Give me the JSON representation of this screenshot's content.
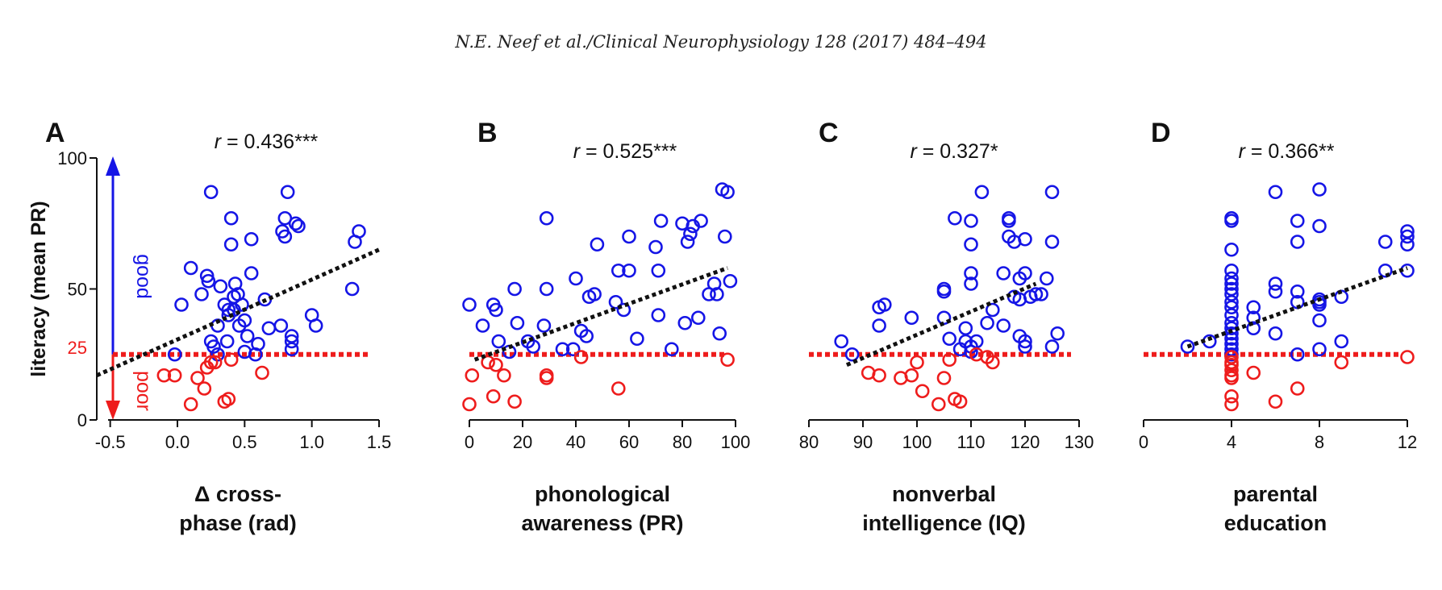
{
  "header": {
    "authors": "N.E. Neef et al.",
    "journal": "Clinical Neurophysiology 128 (2017) 484–494"
  },
  "colors": {
    "good": "#1515e6",
    "poor": "#ee1c1c",
    "fit": "#111111",
    "axis": "#111111"
  },
  "shared": {
    "ylabel": "literacy (mean PR)",
    "yticks": [
      0,
      50,
      100
    ],
    "ylim": [
      0,
      100
    ],
    "ref_value": 25,
    "ref_label": "25",
    "good_label": "good",
    "poor_label": "poor"
  },
  "chart_data": [
    {
      "type": "scatter",
      "panel": "A",
      "r_label": "r",
      "r_text": " = 0.436***",
      "xlabel_lines": [
        "Δ cross-",
        "phase (rad)"
      ],
      "xlim": [
        -0.6,
        1.5
      ],
      "xticks": [
        -0.5,
        0.0,
        0.5,
        1.0,
        1.5
      ],
      "xtick_labels": [
        "-0.5",
        "0.0",
        "0.5",
        "1.0",
        "1.5"
      ],
      "fit": [
        [
          -0.6,
          17
        ],
        [
          1.5,
          65
        ]
      ],
      "good_points": [
        [
          -0.02,
          25
        ],
        [
          0.03,
          44
        ],
        [
          0.1,
          58
        ],
        [
          0.18,
          48
        ],
        [
          0.22,
          55
        ],
        [
          0.23,
          53
        ],
        [
          0.25,
          87
        ],
        [
          0.25,
          30
        ],
        [
          0.27,
          28
        ],
        [
          0.3,
          36
        ],
        [
          0.3,
          25
        ],
        [
          0.32,
          51
        ],
        [
          0.35,
          44
        ],
        [
          0.37,
          30
        ],
        [
          0.38,
          40
        ],
        [
          0.38,
          42
        ],
        [
          0.4,
          77
        ],
        [
          0.4,
          67
        ],
        [
          0.42,
          42
        ],
        [
          0.42,
          47
        ],
        [
          0.43,
          52
        ],
        [
          0.45,
          48
        ],
        [
          0.46,
          36
        ],
        [
          0.48,
          44
        ],
        [
          0.5,
          26
        ],
        [
          0.5,
          38
        ],
        [
          0.52,
          32
        ],
        [
          0.55,
          56
        ],
        [
          0.55,
          69
        ],
        [
          0.58,
          25
        ],
        [
          0.6,
          29
        ],
        [
          0.65,
          46
        ],
        [
          0.68,
          35
        ],
        [
          0.77,
          36
        ],
        [
          0.78,
          72
        ],
        [
          0.8,
          70
        ],
        [
          0.8,
          77
        ],
        [
          0.82,
          87
        ],
        [
          0.85,
          27
        ],
        [
          0.85,
          30
        ],
        [
          0.85,
          32
        ],
        [
          0.88,
          75
        ],
        [
          0.9,
          74
        ],
        [
          1.0,
          40
        ],
        [
          1.03,
          36
        ],
        [
          1.3,
          50
        ],
        [
          1.32,
          68
        ],
        [
          1.35,
          72
        ]
      ],
      "poor_points": [
        [
          -0.1,
          17
        ],
        [
          -0.02,
          17
        ],
        [
          0.1,
          6
        ],
        [
          0.15,
          16
        ],
        [
          0.2,
          12
        ],
        [
          0.22,
          20
        ],
        [
          0.25,
          22
        ],
        [
          0.28,
          22
        ],
        [
          0.35,
          7
        ],
        [
          0.38,
          8
        ],
        [
          0.4,
          23
        ],
        [
          0.63,
          18
        ]
      ]
    },
    {
      "type": "scatter",
      "panel": "B",
      "r_label": "r",
      "r_text": " = 0.525***",
      "xlabel_lines": [
        "phonological",
        "awareness (PR)"
      ],
      "xlim": [
        0,
        100
      ],
      "xticks": [
        0,
        20,
        40,
        60,
        80,
        100
      ],
      "xtick_labels": [
        "0",
        "20",
        "40",
        "60",
        "80",
        "100"
      ],
      "fit": [
        [
          2,
          23
        ],
        [
          97,
          58
        ]
      ],
      "good_points": [
        [
          0,
          44
        ],
        [
          5,
          36
        ],
        [
          9,
          44
        ],
        [
          10,
          42
        ],
        [
          11,
          30
        ],
        [
          15,
          26
        ],
        [
          17,
          50
        ],
        [
          18,
          37
        ],
        [
          22,
          30
        ],
        [
          24,
          28
        ],
        [
          28,
          36
        ],
        [
          29,
          50
        ],
        [
          29,
          77
        ],
        [
          35,
          27
        ],
        [
          39,
          27
        ],
        [
          40,
          54
        ],
        [
          42,
          34
        ],
        [
          44,
          32
        ],
        [
          45,
          47
        ],
        [
          47,
          48
        ],
        [
          48,
          67
        ],
        [
          55,
          45
        ],
        [
          56,
          57
        ],
        [
          58,
          42
        ],
        [
          60,
          70
        ],
        [
          60,
          57
        ],
        [
          63,
          31
        ],
        [
          70,
          66
        ],
        [
          71,
          57
        ],
        [
          71,
          40
        ],
        [
          72,
          76
        ],
        [
          76,
          27
        ],
        [
          80,
          75
        ],
        [
          81,
          37
        ],
        [
          82,
          68
        ],
        [
          83,
          71
        ],
        [
          84,
          74
        ],
        [
          86,
          39
        ],
        [
          87,
          76
        ],
        [
          90,
          48
        ],
        [
          92,
          52
        ],
        [
          93,
          48
        ],
        [
          94,
          33
        ],
        [
          95,
          88
        ],
        [
          96,
          70
        ],
        [
          97,
          87
        ],
        [
          98,
          53
        ]
      ],
      "poor_points": [
        [
          0,
          6
        ],
        [
          1,
          17
        ],
        [
          7,
          22
        ],
        [
          9,
          9
        ],
        [
          10,
          21
        ],
        [
          13,
          17
        ],
        [
          17,
          7
        ],
        [
          29,
          16
        ],
        [
          29,
          17
        ],
        [
          42,
          24
        ],
        [
          56,
          12
        ],
        [
          97,
          23
        ]
      ]
    },
    {
      "type": "scatter",
      "panel": "C",
      "r_label": "r",
      "r_text": " = 0.327*",
      "xlabel_lines": [
        "nonverbal",
        "intelligence (IQ)"
      ],
      "xlim": [
        80,
        130
      ],
      "xticks": [
        80,
        90,
        100,
        110,
        120,
        130
      ],
      "xtick_labels": [
        "80",
        "90",
        "100",
        "110",
        "120",
        "130"
      ],
      "fit": [
        [
          87,
          21
        ],
        [
          122,
          52
        ]
      ],
      "good_points": [
        [
          86,
          30
        ],
        [
          88,
          25
        ],
        [
          93,
          43
        ],
        [
          93,
          36
        ],
        [
          94,
          44
        ],
        [
          99,
          39
        ],
        [
          105,
          50
        ],
        [
          105,
          49
        ],
        [
          105,
          39
        ],
        [
          106,
          31
        ],
        [
          107,
          77
        ],
        [
          108,
          27
        ],
        [
          109,
          30
        ],
        [
          109,
          35
        ],
        [
          110,
          26
        ],
        [
          110,
          28
        ],
        [
          110,
          52
        ],
        [
          110,
          56
        ],
        [
          110,
          67
        ],
        [
          110,
          76
        ],
        [
          111,
          30
        ],
        [
          112,
          87
        ],
        [
          113,
          37
        ],
        [
          114,
          42
        ],
        [
          116,
          36
        ],
        [
          116,
          56
        ],
        [
          117,
          70
        ],
        [
          117,
          76
        ],
        [
          117,
          77
        ],
        [
          118,
          68
        ],
        [
          118,
          47
        ],
        [
          119,
          46
        ],
        [
          119,
          54
        ],
        [
          119,
          32
        ],
        [
          120,
          30
        ],
        [
          120,
          28
        ],
        [
          120,
          56
        ],
        [
          120,
          69
        ],
        [
          121,
          47
        ],
        [
          122,
          48
        ],
        [
          123,
          48
        ],
        [
          124,
          54
        ],
        [
          125,
          28
        ],
        [
          125,
          68
        ],
        [
          125,
          87
        ],
        [
          126,
          33
        ]
      ],
      "poor_points": [
        [
          91,
          18
        ],
        [
          93,
          17
        ],
        [
          97,
          16
        ],
        [
          99,
          17
        ],
        [
          100,
          22
        ],
        [
          101,
          11
        ],
        [
          104,
          6
        ],
        [
          105,
          16
        ],
        [
          106,
          23
        ],
        [
          107,
          8
        ],
        [
          108,
          7
        ],
        [
          111,
          25
        ],
        [
          113,
          24
        ],
        [
          114,
          22
        ]
      ]
    },
    {
      "type": "scatter",
      "panel": "D",
      "r_label": "r",
      "r_text": " = 0.366**",
      "xlabel_lines": [
        "parental",
        "education"
      ],
      "xlim": [
        0,
        12
      ],
      "xticks": [
        0,
        4,
        8,
        12
      ],
      "xtick_labels": [
        "0",
        "4",
        "8",
        "12"
      ],
      "fit": [
        [
          2,
          28
        ],
        [
          12,
          58
        ]
      ],
      "good_points": [
        [
          2,
          28
        ],
        [
          3,
          30
        ],
        [
          4,
          25
        ],
        [
          4,
          27
        ],
        [
          4,
          29
        ],
        [
          4,
          31
        ],
        [
          4,
          33
        ],
        [
          4,
          35
        ],
        [
          4,
          37
        ],
        [
          4,
          40
        ],
        [
          4,
          43
        ],
        [
          4,
          45
        ],
        [
          4,
          48
        ],
        [
          4,
          50
        ],
        [
          4,
          52
        ],
        [
          4,
          54
        ],
        [
          4,
          57
        ],
        [
          4,
          65
        ],
        [
          4,
          76
        ],
        [
          4,
          77
        ],
        [
          5,
          39
        ],
        [
          5,
          35
        ],
        [
          5,
          43
        ],
        [
          6,
          33
        ],
        [
          6,
          49
        ],
        [
          6,
          52
        ],
        [
          6,
          87
        ],
        [
          7,
          25
        ],
        [
          7,
          45
        ],
        [
          7,
          49
        ],
        [
          7,
          68
        ],
        [
          7,
          76
        ],
        [
          8,
          27
        ],
        [
          8,
          38
        ],
        [
          8,
          44
        ],
        [
          8,
          45
        ],
        [
          8,
          46
        ],
        [
          8,
          74
        ],
        [
          8,
          88
        ],
        [
          9,
          30
        ],
        [
          9,
          47
        ],
        [
          11,
          57
        ],
        [
          11,
          68
        ],
        [
          12,
          57
        ],
        [
          12,
          67
        ],
        [
          12,
          70
        ],
        [
          12,
          72
        ]
      ],
      "poor_points": [
        [
          4,
          6
        ],
        [
          4,
          9
        ],
        [
          4,
          16
        ],
        [
          4,
          17
        ],
        [
          4,
          19
        ],
        [
          4,
          21
        ],
        [
          4,
          22
        ],
        [
          4,
          24
        ],
        [
          5,
          18
        ],
        [
          6,
          7
        ],
        [
          7,
          12
        ],
        [
          9,
          22
        ],
        [
          12,
          24
        ]
      ]
    }
  ]
}
